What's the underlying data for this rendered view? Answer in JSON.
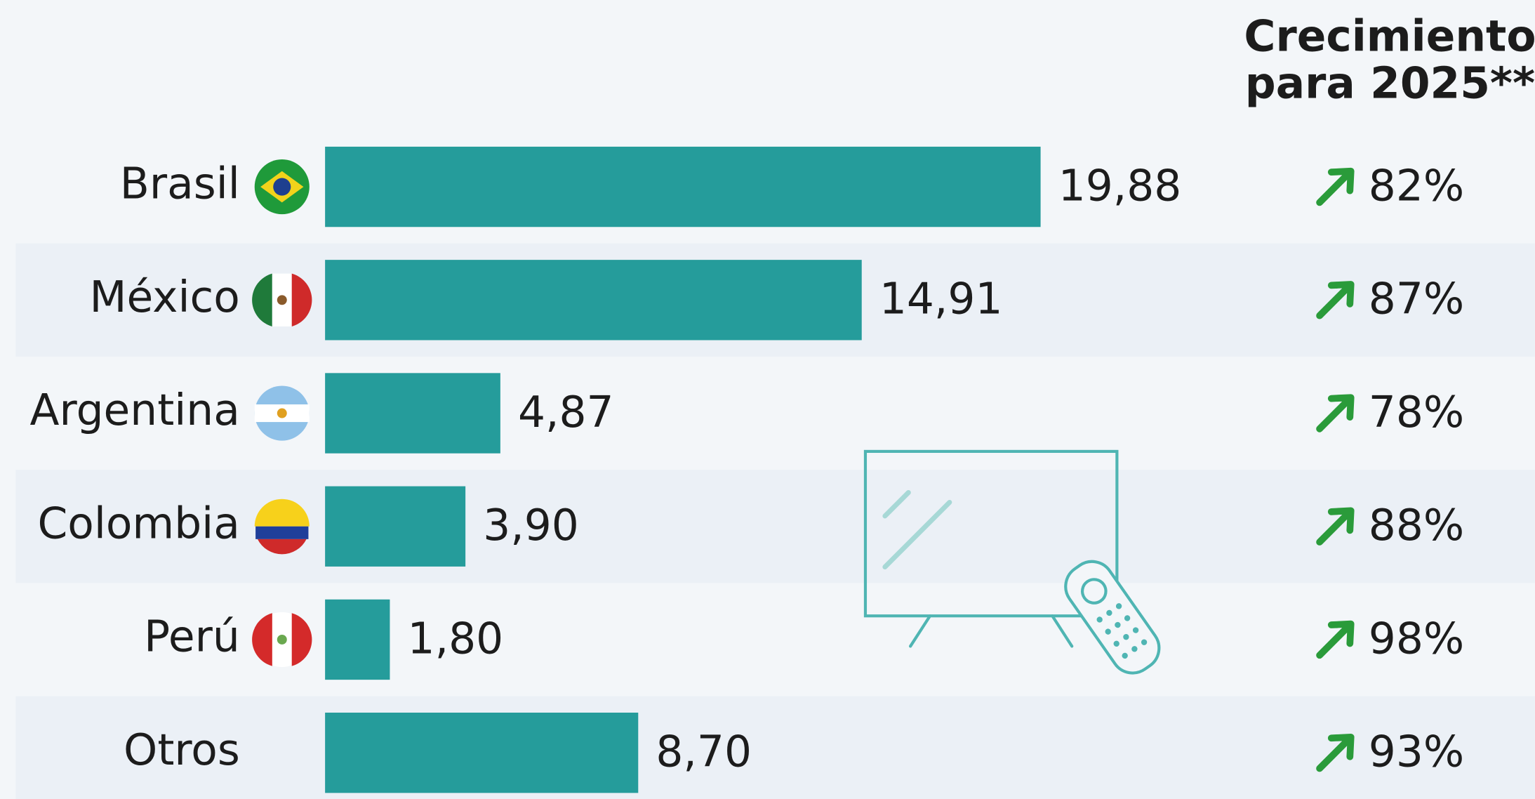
{
  "chart_data": {
    "type": "bar",
    "orientation": "horizontal",
    "categories": [
      "Brasil",
      "México",
      "Argentina",
      "Colombia",
      "Perú",
      "Otros"
    ],
    "values": [
      19.88,
      14.91,
      4.87,
      3.9,
      1.8,
      8.7
    ],
    "value_labels": [
      "19,88",
      "14,91",
      "4,87",
      "3,90",
      "1,80",
      "8,70"
    ],
    "color": "#259c9b",
    "growth": {
      "title_lines": [
        "Crecimiento",
        "para 2025**"
      ],
      "values": [
        82,
        87,
        78,
        88,
        98,
        93
      ],
      "value_labels": [
        "82%",
        "87%",
        "78%",
        "88%",
        "98%",
        "93%"
      ],
      "color": "#2a9b3a"
    }
  }
}
